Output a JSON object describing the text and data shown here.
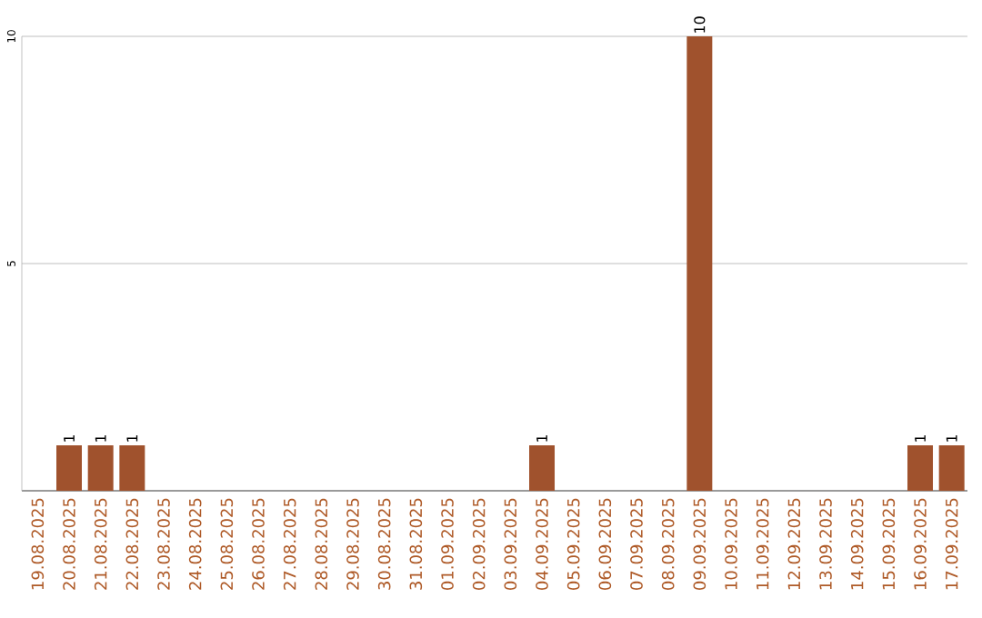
{
  "chart_data": {
    "type": "bar",
    "categories": [
      "19.08.2025",
      "20.08.2025",
      "21.08.2025",
      "22.08.2025",
      "23.08.2025",
      "24.08.2025",
      "25.08.2025",
      "26.08.2025",
      "27.08.2025",
      "28.08.2025",
      "29.08.2025",
      "30.08.2025",
      "31.08.2025",
      "01.09.2025",
      "02.09.2025",
      "03.09.2025",
      "04.09.2025",
      "05.09.2025",
      "06.09.2025",
      "07.09.2025",
      "08.09.2025",
      "09.09.2025",
      "10.09.2025",
      "11.09.2025",
      "12.09.2025",
      "13.09.2025",
      "14.09.2025",
      "15.09.2025",
      "16.09.2025",
      "17.09.2025"
    ],
    "values": [
      0,
      1,
      1,
      1,
      0,
      0,
      0,
      0,
      0,
      0,
      0,
      0,
      0,
      0,
      0,
      0,
      1,
      0,
      0,
      0,
      0,
      10,
      0,
      0,
      0,
      0,
      0,
      0,
      1,
      1
    ],
    "value_labels": [
      null,
      "1",
      "1",
      "1",
      null,
      null,
      null,
      null,
      null,
      null,
      null,
      null,
      null,
      null,
      null,
      null,
      "1",
      null,
      null,
      null,
      null,
      "10",
      null,
      null,
      null,
      null,
      null,
      null,
      "1",
      "1"
    ],
    "color": "#a0522d",
    "ylim": [
      0,
      10
    ],
    "yticks": [
      5,
      10
    ],
    "grid": "y"
  }
}
